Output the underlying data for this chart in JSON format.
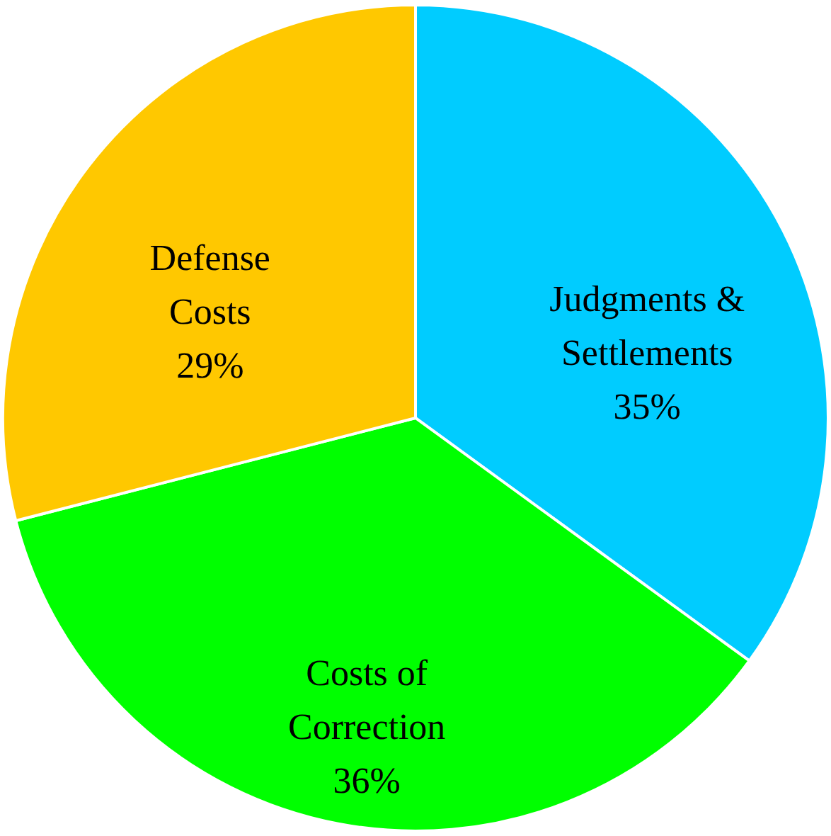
{
  "chart_data": {
    "type": "pie",
    "categories": [
      "Judgments & Settlements",
      "Costs of Correction",
      "Defense Costs"
    ],
    "values": [
      35,
      36,
      29
    ],
    "colors": [
      "#00ccff",
      "#00ff00",
      "#ffc800"
    ],
    "value_labels": [
      "35%",
      "36%",
      "29%"
    ],
    "legend": false
  }
}
